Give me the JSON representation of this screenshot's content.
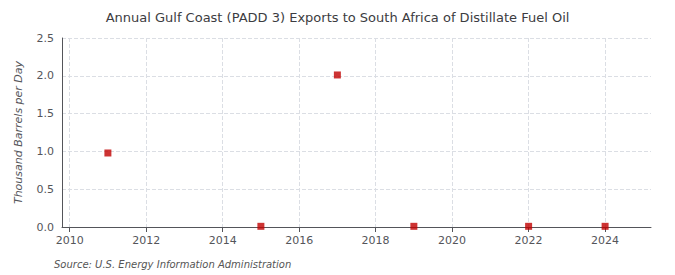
{
  "chart_data": {
    "type": "scatter",
    "title": "Annual Gulf Coast (PADD 3) Exports to South Africa of Distillate Fuel Oil",
    "ylabel": "Thousand Barrels per Day",
    "source": "Source: U.S. Energy Information Administration",
    "x": [
      2011,
      2015,
      2017,
      2019,
      2022,
      2024
    ],
    "values": [
      0.979,
      0.009,
      2.011,
      0.009,
      0.009,
      0.009
    ],
    "color": "#c00000",
    "marker": "square",
    "xlim": [
      2009.8,
      2025.2
    ],
    "xticks": [
      2010,
      2012,
      2014,
      2016,
      2018,
      2020,
      2022,
      2024
    ],
    "ylim": [
      0,
      2.5
    ],
    "yticks": [
      {
        "value": 0.0,
        "label": "0.0"
      },
      0.5,
      {
        "value": 1.0,
        "label": "1.0"
      },
      1.5,
      {
        "value": 2.0,
        "label": "2.0"
      },
      2.5
    ],
    "grid": true
  }
}
